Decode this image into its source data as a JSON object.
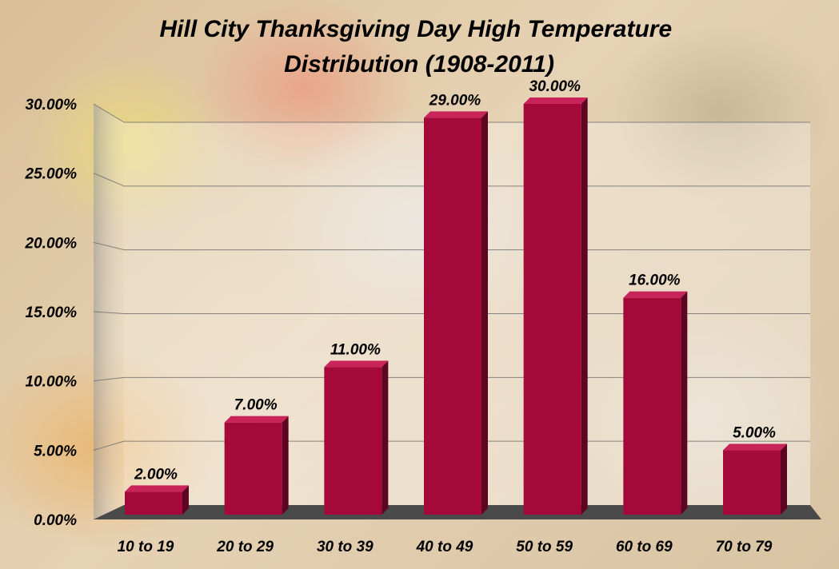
{
  "chart_data": {
    "type": "bar",
    "title": "Hill City Thanksgiving Day High Temperature Distribution (1908-2011)",
    "title_lines": [
      "Hill City Thanksgiving Day High Temperature",
      "Distribution (1908-2011)"
    ],
    "categories": [
      "10 to 19",
      "20 to 29",
      "30 to 39",
      "40 to 49",
      "50 to 59",
      "60 to 69",
      "70 to 79"
    ],
    "values": [
      2.0,
      7.0,
      11.0,
      29.0,
      30.0,
      16.0,
      5.0
    ],
    "data_labels": [
      "2.00%",
      "7.00%",
      "11.00%",
      "29.00%",
      "30.00%",
      "16.00%",
      "5.00%"
    ],
    "yticks": [
      0,
      5,
      10,
      15,
      20,
      25,
      30
    ],
    "ytick_labels": [
      "0.00%",
      "5.00%",
      "10.00%",
      "15.00%",
      "20.00%",
      "25.00%",
      "30.00%"
    ],
    "ylim": [
      0,
      30
    ],
    "xlabel": "",
    "ylabel": "",
    "grid": true,
    "legend": "none",
    "colors": {
      "bar_front": "#a5093a",
      "bar_side": "#5e0522",
      "bar_top": "#c8245a",
      "floor": "#4a4a4a",
      "text": "#000000"
    }
  }
}
